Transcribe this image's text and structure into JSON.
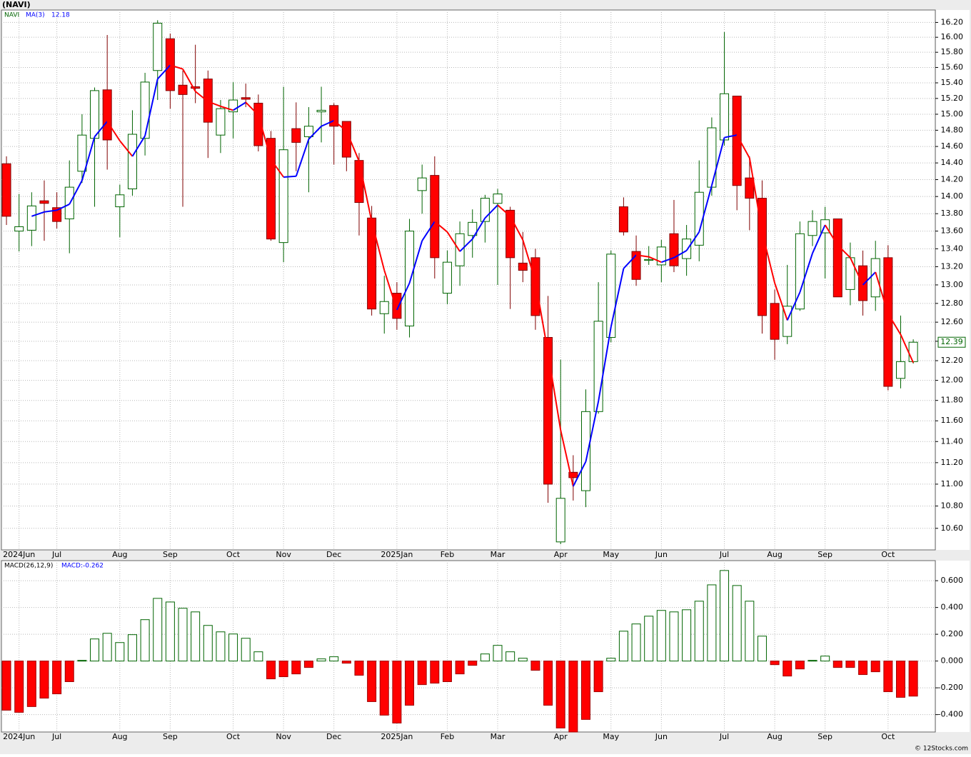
{
  "chart_data": [
    {
      "type": "candlestick",
      "title": "(NAVI)",
      "log_scale": true,
      "grid": true,
      "xlim": [
        -0.4,
        73.75
      ],
      "ylim": [
        10.41,
        16.37
      ],
      "xticks": [
        {
          "value": 1,
          "label": "2024Jun"
        },
        {
          "value": 4,
          "label": "Jul"
        },
        {
          "value": 9,
          "label": "Aug"
        },
        {
          "value": 13,
          "label": "Sep"
        },
        {
          "value": 18,
          "label": "Oct"
        },
        {
          "value": 22,
          "label": "Nov"
        },
        {
          "value": 26,
          "label": "Dec"
        },
        {
          "value": 31,
          "label": "2025Jan"
        },
        {
          "value": 35,
          "label": "Feb"
        },
        {
          "value": 39,
          "label": "Mar"
        },
        {
          "value": 44,
          "label": "Apr"
        },
        {
          "value": 48,
          "label": "May"
        },
        {
          "value": 52,
          "label": "Jun"
        },
        {
          "value": 57,
          "label": "Jul"
        },
        {
          "value": 61,
          "label": "Aug"
        },
        {
          "value": 65,
          "label": "Sep"
        },
        {
          "value": 70,
          "label": "Oct"
        }
      ],
      "yticks": [
        {
          "value": 16.2,
          "label": "16.20"
        },
        {
          "value": 16.0,
          "label": "16.00"
        },
        {
          "value": 15.8,
          "label": "15.80"
        },
        {
          "value": 15.6,
          "label": "15.60"
        },
        {
          "value": 15.4,
          "label": "15.40"
        },
        {
          "value": 15.2,
          "label": "15.20"
        },
        {
          "value": 15.0,
          "label": "15.00"
        },
        {
          "value": 14.8,
          "label": "14.80"
        },
        {
          "value": 14.6,
          "label": "14.60"
        },
        {
          "value": 14.4,
          "label": "14.40"
        },
        {
          "value": 14.2,
          "label": "14.20"
        },
        {
          "value": 14.0,
          "label": "14.00"
        },
        {
          "value": 13.8,
          "label": "13.80"
        },
        {
          "value": 13.6,
          "label": "13.60"
        },
        {
          "value": 13.4,
          "label": "13.40"
        },
        {
          "value": 13.2,
          "label": "13.20"
        },
        {
          "value": 13.0,
          "label": "13.00"
        },
        {
          "value": 12.8,
          "label": "12.80"
        },
        {
          "value": 12.6,
          "label": "12.60"
        },
        {
          "value": 12.4,
          "label": "12.40"
        },
        {
          "value": 12.2,
          "label": "12.20"
        },
        {
          "value": 12.0,
          "label": "12.00"
        },
        {
          "value": 11.8,
          "label": "11.80"
        },
        {
          "value": 11.6,
          "label": "11.60"
        },
        {
          "value": 11.4,
          "label": "11.40"
        },
        {
          "value": 11.2,
          "label": "11.20"
        },
        {
          "value": 11.0,
          "label": "11.00"
        },
        {
          "value": 10.8,
          "label": "10.80"
        },
        {
          "value": 10.6,
          "label": "10.60"
        }
      ],
      "series": [
        {
          "name": "NAVI",
          "up_color": "#006400",
          "down_color": "#ff0000",
          "open": [
            14.39,
            13.6,
            13.61,
            13.95,
            13.87,
            13.74,
            14.3,
            14.7,
            15.31,
            13.88,
            14.09,
            14.7,
            15.56,
            15.98,
            15.37,
            15.35,
            15.45,
            14.74,
            15.03,
            15.21,
            15.14,
            14.7,
            13.47,
            14.82,
            14.72,
            15.03,
            15.11,
            14.91,
            14.43,
            13.75,
            12.69,
            12.91,
            12.56,
            14.07,
            14.25,
            12.91,
            13.21,
            13.55,
            13.71,
            13.92,
            13.84,
            13.24,
            13.3,
            12.44,
            10.48,
            11.11,
            10.94,
            11.69,
            12.44,
            13.88,
            13.37,
            13.27,
            13.22,
            13.57,
            13.29,
            13.44,
            14.11,
            14.68,
            15.23,
            14.22,
            13.98,
            12.8,
            12.45,
            12.74,
            13.55,
            13.58,
            13.74,
            12.95,
            13.21,
            12.87,
            13.3,
            12.02,
            12.19
          ],
          "high": [
            14.48,
            14.03,
            14.05,
            14.19,
            14.05,
            14.43,
            15.0,
            15.34,
            16.03,
            14.14,
            15.05,
            15.53,
            16.23,
            16.05,
            15.56,
            15.9,
            15.56,
            15.18,
            15.41,
            15.39,
            15.25,
            14.79,
            15.35,
            15.15,
            15.09,
            15.35,
            15.14,
            14.91,
            14.52,
            13.89,
            13.1,
            13.03,
            13.74,
            14.38,
            14.48,
            13.38,
            13.71,
            13.85,
            14.02,
            14.09,
            13.88,
            13.59,
            13.4,
            12.88,
            12.21,
            11.27,
            11.91,
            13.03,
            13.38,
            13.99,
            13.55,
            13.43,
            13.5,
            13.96,
            13.67,
            14.43,
            14.96,
            16.07,
            15.23,
            14.48,
            14.19,
            12.95,
            13.22,
            13.71,
            13.84,
            13.88,
            13.74,
            13.47,
            13.38,
            13.49,
            13.44,
            12.67,
            12.42
          ],
          "low": [
            13.67,
            13.37,
            13.43,
            13.49,
            13.63,
            13.35,
            14.16,
            13.88,
            14.32,
            13.53,
            14.01,
            14.49,
            15.18,
            15.07,
            13.88,
            15.14,
            14.46,
            14.52,
            14.7,
            15.09,
            14.54,
            13.49,
            13.25,
            14.3,
            14.05,
            14.65,
            14.38,
            14.3,
            13.55,
            12.67,
            12.48,
            12.52,
            12.44,
            13.8,
            13.07,
            12.79,
            12.99,
            13.3,
            13.47,
            13.0,
            12.74,
            13.03,
            12.52,
            10.83,
            10.46,
            10.85,
            10.79,
            11.67,
            12.39,
            13.55,
            12.99,
            13.22,
            13.03,
            13.14,
            13.1,
            13.26,
            14.01,
            14.61,
            13.84,
            13.61,
            12.48,
            12.21,
            12.37,
            12.72,
            13.43,
            13.07,
            12.87,
            12.78,
            12.67,
            12.72,
            11.9,
            11.92,
            12.17
          ],
          "close": [
            13.77,
            13.65,
            13.89,
            13.92,
            13.71,
            14.11,
            14.74,
            15.3,
            14.68,
            14.02,
            14.75,
            15.41,
            16.19,
            15.3,
            15.25,
            15.33,
            14.9,
            15.07,
            15.18,
            15.19,
            14.61,
            13.51,
            14.56,
            14.65,
            14.85,
            15.05,
            14.85,
            14.47,
            13.93,
            12.74,
            12.82,
            12.64,
            13.6,
            14.22,
            13.3,
            13.25,
            13.57,
            13.7,
            13.98,
            14.03,
            13.3,
            13.16,
            12.67,
            11.0,
            10.87,
            11.06,
            11.69,
            12.61,
            13.34,
            13.59,
            13.06,
            13.28,
            13.42,
            13.21,
            13.51,
            14.05,
            14.83,
            15.26,
            14.13,
            13.98,
            12.67,
            12.42,
            12.77,
            13.57,
            13.71,
            13.73,
            12.87,
            13.3,
            12.83,
            13.29,
            11.94,
            12.19,
            12.39
          ]
        },
        {
          "name": "MA(3)",
          "up_color": "#0000ff",
          "down_color": "#ff0000",
          "values": [
            null,
            null,
            13.77,
            13.82,
            13.84,
            13.91,
            14.19,
            14.72,
            14.91,
            14.67,
            14.48,
            14.73,
            15.45,
            15.63,
            15.58,
            15.29,
            15.16,
            15.1,
            15.05,
            15.15,
            14.99,
            14.44,
            14.23,
            14.24,
            14.69,
            14.85,
            14.92,
            14.79,
            14.42,
            13.71,
            13.16,
            12.73,
            13.02,
            13.49,
            13.71,
            13.59,
            13.37,
            13.51,
            13.75,
            13.9,
            13.77,
            13.5,
            13.04,
            12.28,
            11.51,
            10.98,
            11.21,
            11.79,
            12.55,
            13.18,
            13.33,
            13.31,
            13.25,
            13.3,
            13.38,
            13.59,
            14.13,
            14.71,
            14.74,
            14.46,
            13.59,
            13.02,
            12.62,
            12.92,
            13.35,
            13.67,
            13.44,
            13.3,
            13.0,
            13.14,
            12.69,
            12.47,
            12.18
          ]
        }
      ]
    },
    {
      "type": "macd",
      "indicator": "MACD(26,12,9)",
      "readout": "MACD:-0.262",
      "grid": true,
      "xlim": [
        -0.4,
        73.75
      ],
      "ylim": [
        -0.53,
        0.75
      ],
      "yticks": [
        {
          "value": 0.6,
          "label": "0.600"
        },
        {
          "value": 0.4,
          "label": "0.400"
        },
        {
          "value": 0.2,
          "label": "0.200"
        },
        {
          "value": 0,
          "label": "0.000"
        },
        {
          "value": -0.2,
          "label": "-0.200"
        },
        {
          "value": -0.4,
          "label": "-0.400"
        }
      ],
      "up_color": "#006400",
      "down_color": "#ff0000",
      "values": [
        -0.367,
        -0.383,
        -0.34,
        -0.277,
        -0.245,
        -0.154,
        0.005,
        0.165,
        0.207,
        0.138,
        0.197,
        0.309,
        0.468,
        0.441,
        0.394,
        0.367,
        0.266,
        0.218,
        0.202,
        0.17,
        0.069,
        -0.133,
        -0.117,
        -0.096,
        -0.048,
        0.016,
        0.032,
        -0.016,
        -0.106,
        -0.303,
        -0.404,
        -0.463,
        -0.33,
        -0.176,
        -0.165,
        -0.154,
        -0.096,
        -0.032,
        0.053,
        0.117,
        0.069,
        0.021,
        -0.069,
        -0.33,
        -0.5,
        -0.53,
        -0.436,
        -0.229,
        0.021,
        0.223,
        0.277,
        0.335,
        0.378,
        0.367,
        0.383,
        0.447,
        0.569,
        0.676,
        0.564,
        0.447,
        0.186,
        -0.027,
        -0.112,
        -0.059,
        0.005,
        0.037,
        -0.048,
        -0.048,
        -0.101,
        -0.08,
        -0.229,
        -0.271,
        -0.262
      ]
    }
  ],
  "footer": "© 12Stocks.com"
}
